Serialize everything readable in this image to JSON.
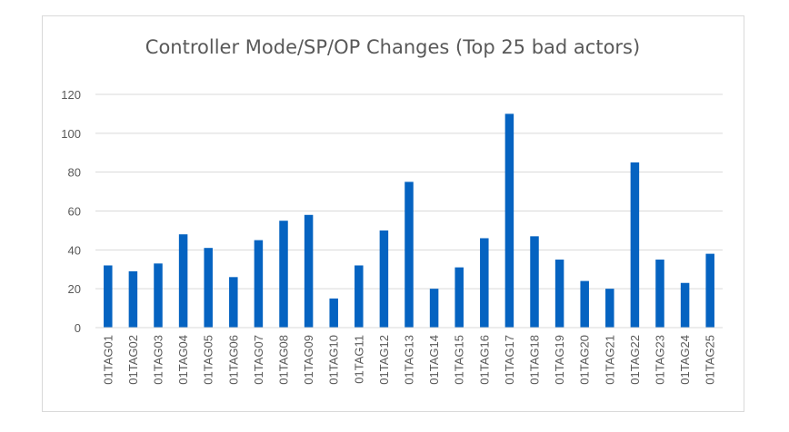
{
  "chart_data": {
    "type": "bar",
    "title": "Controller Mode/SP/OP Changes (Top 25 bad actors)",
    "xlabel": "",
    "ylabel": "",
    "categories": [
      "01TAG01",
      "01TAG02",
      "01TAG03",
      "01TAG04",
      "01TAG05",
      "01TAG06",
      "01TAG07",
      "01TAG08",
      "01TAG09",
      "01TAG10",
      "01TAG11",
      "01TAG12",
      "01TAG13",
      "01TAG14",
      "01TAG15",
      "01TAG16",
      "01TAG17",
      "01TAG18",
      "01TAG19",
      "01TAG20",
      "01TAG21",
      "01TAG22",
      "01TAG23",
      "01TAG24",
      "01TAG25"
    ],
    "values": [
      32,
      29,
      33,
      48,
      41,
      26,
      45,
      55,
      58,
      15,
      32,
      50,
      75,
      20,
      31,
      46,
      110,
      47,
      35,
      24,
      20,
      85,
      35,
      23,
      38
    ],
    "ylim": [
      0,
      120
    ],
    "yticks": [
      0,
      20,
      40,
      60,
      80,
      100,
      120
    ],
    "grid": true,
    "legend": "none",
    "bar_color": "#0563c1",
    "grid_color": "#d9d9d9",
    "text_color": "#595959"
  }
}
